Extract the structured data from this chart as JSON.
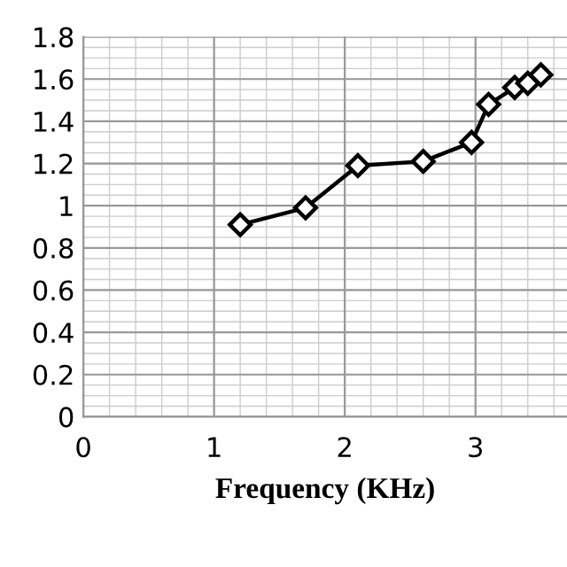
{
  "chart_data": {
    "type": "line",
    "xlabel": "Frequency (KHz)",
    "x": [
      1.2,
      1.7,
      2.1,
      2.6,
      2.97,
      3.1,
      3.3,
      3.4,
      3.5
    ],
    "series": [
      {
        "color": "#000000",
        "values": [
          0.91,
          0.99,
          1.19,
          1.21,
          1.3,
          1.48,
          1.56,
          1.58,
          1.62
        ]
      }
    ],
    "marker": "diamond",
    "line_style": "solid",
    "xlim": [
      0,
      3.7
    ],
    "xticks": [
      0,
      1,
      2,
      3
    ],
    "ylim": [
      0,
      1.8
    ],
    "yticks": [
      0,
      {
        "value": 0.2,
        "label": "0.2"
      },
      {
        "value": 0.4,
        "label": "0.4"
      },
      {
        "value": 0.6,
        "label": "0.6"
      },
      {
        "value": 0.8,
        "label": "0.8"
      },
      1,
      {
        "value": 1.2,
        "label": "1.2"
      },
      {
        "value": 1.4,
        "label": "1.4"
      },
      {
        "value": 1.6,
        "label": "1.6"
      },
      {
        "value": 1.8,
        "label": "1.8"
      }
    ],
    "grid": true
  }
}
